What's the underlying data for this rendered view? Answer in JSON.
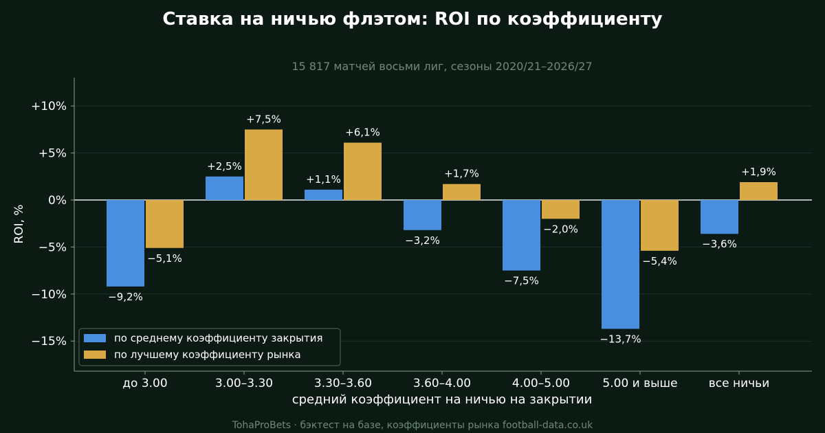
{
  "colors": {
    "background": "#0b1a13",
    "closing_series": "#4a8ee0",
    "best_series": "#d8a945",
    "text": "#ffffff",
    "muted_text": "#6f8a7c",
    "grid": "#1e3128",
    "axis": "#8fa096"
  },
  "chart_data": {
    "type": "bar",
    "title": "Ставка на ничью флэтом: ROI по коэффициенту",
    "subtitle": "15 817 матчей восьми лиг, сезоны 2020/21–2026/27",
    "xlabel": "средний коэффициент на ничью на закрытии",
    "ylabel": "ROI, %",
    "footer": "TohaProBets · бэктест на базе, коэффициенты рынка football-data.co.uk",
    "categories": [
      "до 3.00",
      "3.00–3.30",
      "3.30–3.60",
      "3.60–4.00",
      "4.00–5.00",
      "5.00 и выше",
      "все ничьи"
    ],
    "series": [
      {
        "name": "по среднему коэффициенту закрытия",
        "values": [
          -9.2,
          2.5,
          1.1,
          -3.2,
          -7.5,
          -13.7,
          -3.6
        ],
        "labels": [
          "−9,2%",
          "+2,5%",
          "+1,1%",
          "−3,2%",
          "−7,5%",
          "−13,7%",
          "−3,6%"
        ]
      },
      {
        "name": "по лучшему коэффициенту рынка",
        "values": [
          -5.1,
          7.5,
          6.1,
          1.7,
          -2.0,
          -5.4,
          1.9
        ],
        "labels": [
          "−5,1%",
          "+7,5%",
          "+6,1%",
          "+1,7%",
          "−2,0%",
          "−5,4%",
          "+1,9%"
        ]
      }
    ],
    "ylim": [
      -18,
      13
    ],
    "yticks": [
      10,
      5,
      0,
      -5,
      -10,
      -15
    ],
    "ytick_labels": [
      "+10%",
      "+5%",
      "0%",
      "−5%",
      "−10%",
      "−15%"
    ],
    "grid": true,
    "legend_position": "bottom-left"
  }
}
